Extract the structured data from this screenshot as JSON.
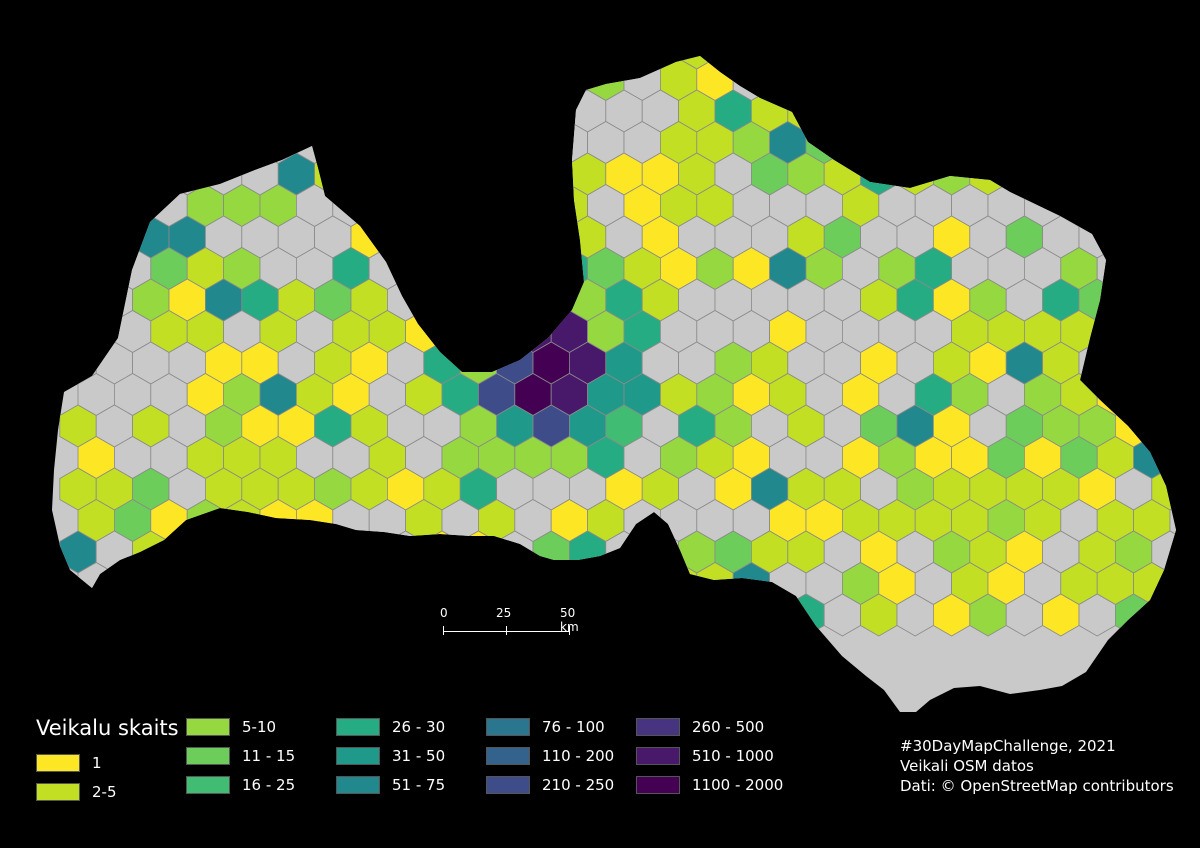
{
  "legend": {
    "title": "Veikalu skaits",
    "classes": [
      {
        "label": "1",
        "color": "#fde725"
      },
      {
        "label": "2-5",
        "color": "#c2df23"
      },
      {
        "label": "5-10",
        "color": "#95d840"
      },
      {
        "label": "11 - 15",
        "color": "#6ccd5a"
      },
      {
        "label": "16 - 25",
        "color": "#40bd72"
      },
      {
        "label": "26 - 30",
        "color": "#25ac82"
      },
      {
        "label": "31 - 50",
        "color": "#1f9a8a"
      },
      {
        "label": "51 - 75",
        "color": "#21888d"
      },
      {
        "label": "76 - 100",
        "color": "#2a768e"
      },
      {
        "label": "110 - 200",
        "color": "#33638d"
      },
      {
        "label": "210 - 250",
        "color": "#3e4c8a"
      },
      {
        "label": "260 - 500",
        "color": "#463480"
      },
      {
        "label": "510 - 1000",
        "color": "#48186a"
      },
      {
        "label": "1100 - 2000",
        "color": "#440154"
      }
    ],
    "no_data_color": "#c9c9c9"
  },
  "scalebar": {
    "labels": [
      "0",
      "25",
      "50 km"
    ]
  },
  "credits": {
    "line1": "#30DayMapChallenge, 2021",
    "line2": "Veikali OSM datos",
    "line3": "Dati: © OpenStreetMap contributors"
  }
}
